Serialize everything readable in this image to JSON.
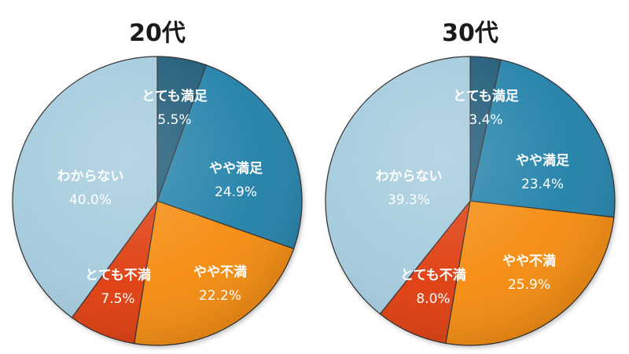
{
  "chart_data": [
    {
      "type": "pie",
      "title": "20代",
      "slices": [
        {
          "label": "とても満足",
          "value": 5.5,
          "text": "5.5%",
          "color": "#1b5775"
        },
        {
          "label": "やや満足",
          "value": 24.9,
          "text": "24.9%",
          "color": "#1f7fa8"
        },
        {
          "label": "やや不満",
          "value": 22.2,
          "text": "22.2%",
          "color": "#f58a0b"
        },
        {
          "label": "とても不満",
          "value": 7.5,
          "text": "7.5%",
          "color": "#de3a0b"
        },
        {
          "label": "わからない",
          "value": 40.0,
          "text": "40.0%",
          "color": "#a2cadc"
        }
      ]
    },
    {
      "type": "pie",
      "title": "30代",
      "slices": [
        {
          "label": "とても満足",
          "value": 3.4,
          "text": "3.4%",
          "color": "#1b5775"
        },
        {
          "label": "やや満足",
          "value": 23.4,
          "text": "23.4%",
          "color": "#1f7fa8"
        },
        {
          "label": "やや不満",
          "value": 25.9,
          "text": "25.9%",
          "color": "#f58a0b"
        },
        {
          "label": "とても不満",
          "value": 8.0,
          "text": "8.0%",
          "color": "#de3a0b"
        },
        {
          "label": "わからない",
          "value": 39.3,
          "text": "39.3%",
          "color": "#a2cadc"
        }
      ]
    }
  ]
}
